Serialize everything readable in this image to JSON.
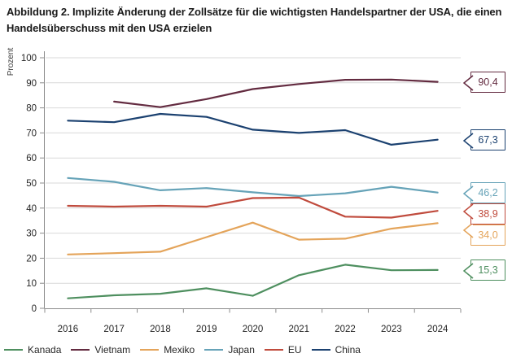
{
  "y_axis": {
    "label": "Prozent",
    "min": 0,
    "max": 100,
    "tick_step": 10,
    "ticks": [
      0,
      10,
      20,
      30,
      40,
      50,
      60,
      70,
      80,
      90,
      100
    ]
  },
  "chart_data": {
    "type": "line",
    "title": "Abbildung 2. Implizite Änderung der Zollsätze für die wichtigsten Handelspartner der USA, die einen Handelsüberschuss mit den USA erzielen",
    "categories": [
      2016,
      2017,
      2018,
      2019,
      2020,
      2021,
      2022,
      2023,
      2024
    ],
    "xlabel": "",
    "ylabel": "Prozent",
    "ylim": [
      0,
      100
    ],
    "ytick_step": 10,
    "grid": "horizontal",
    "legend_position": "bottom-left",
    "series": [
      {
        "name": "Kanada",
        "color": "#4e8f5f",
        "values": [
          4.0,
          5.2,
          5.8,
          8.0,
          5.0,
          13.2,
          17.4,
          15.2,
          15.3
        ],
        "end_label": "15,3"
      },
      {
        "name": "Vietnam",
        "color": "#632b40",
        "values": [
          null,
          82.5,
          80.3,
          83.5,
          87.5,
          89.5,
          91.2,
          91.3,
          90.4
        ],
        "end_label": "90,4"
      },
      {
        "name": "Mexiko",
        "color": "#e4a45a",
        "values": [
          21.5,
          22.0,
          22.6,
          28.4,
          34.2,
          27.4,
          27.8,
          31.8,
          34.0
        ],
        "end_label": "34,0"
      },
      {
        "name": "Japan",
        "color": "#66a3b8",
        "values": [
          52.0,
          50.5,
          47.1,
          48.0,
          46.3,
          44.8,
          45.9,
          48.5,
          46.2
        ],
        "end_label": "46,2"
      },
      {
        "name": "EU",
        "color": "#c04b3d",
        "values": [
          40.9,
          40.6,
          40.9,
          40.6,
          44.0,
          44.2,
          36.6,
          36.2,
          38.9
        ],
        "end_label": "38,9"
      },
      {
        "name": "China",
        "color": "#1b4170",
        "values": [
          74.9,
          74.3,
          77.6,
          76.4,
          71.3,
          70.0,
          71.1,
          65.3,
          67.3
        ],
        "end_label": "67,3"
      }
    ]
  },
  "style": {
    "grid_color": "#d9d9d9",
    "axis_color": "#8c8c8c",
    "tick_label_color": "#262626",
    "title_color": "#1a1a1a"
  }
}
